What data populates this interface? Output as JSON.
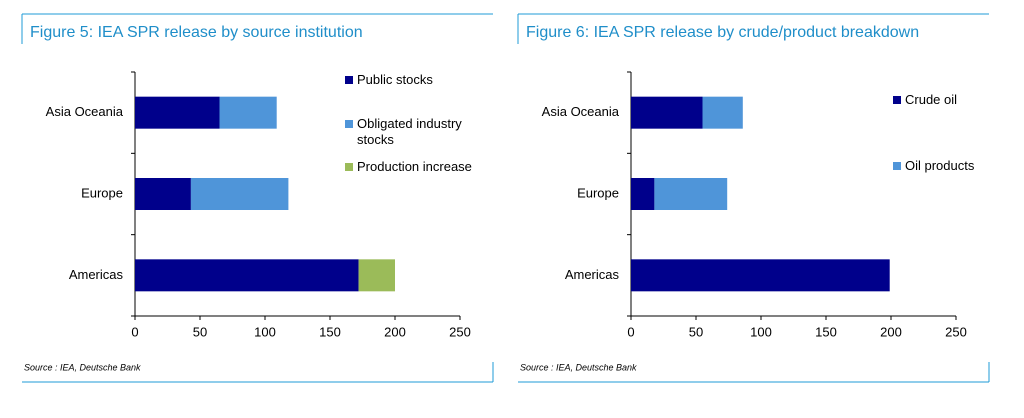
{
  "chart_data": [
    {
      "type": "bar",
      "orientation": "horizontal",
      "stacked": true,
      "title": "Figure 5: IEA SPR release by source institution",
      "source": "Source : IEA, Deutsche Bank",
      "categories": [
        "Asia Oceania",
        "Europe",
        "Americas"
      ],
      "series": [
        {
          "name": "Public stocks",
          "color": "#00008b",
          "values": [
            65,
            43,
            172
          ]
        },
        {
          "name": "Obligated industry stocks",
          "color": "#4f95d9",
          "values": [
            44,
            75,
            0
          ]
        },
        {
          "name": "Production increase",
          "color": "#9bbb59",
          "values": [
            0,
            0,
            28
          ]
        }
      ],
      "xlim": [
        0,
        250
      ],
      "xticks": [
        0,
        50,
        100,
        150,
        200,
        250
      ]
    },
    {
      "type": "bar",
      "orientation": "horizontal",
      "stacked": true,
      "title": "Figure 6: IEA SPR release by crude/product breakdown",
      "source": "Source : IEA, Deutsche Bank",
      "categories": [
        "Asia Oceania",
        "Europe",
        "Americas"
      ],
      "series": [
        {
          "name": "Crude oil",
          "color": "#00008b",
          "values": [
            55,
            18,
            199
          ]
        },
        {
          "name": "Oil products",
          "color": "#4f95d9",
          "values": [
            31,
            56,
            0
          ]
        }
      ],
      "xlim": [
        0,
        250
      ],
      "xticks": [
        0,
        50,
        100,
        150,
        200,
        250
      ]
    }
  ]
}
